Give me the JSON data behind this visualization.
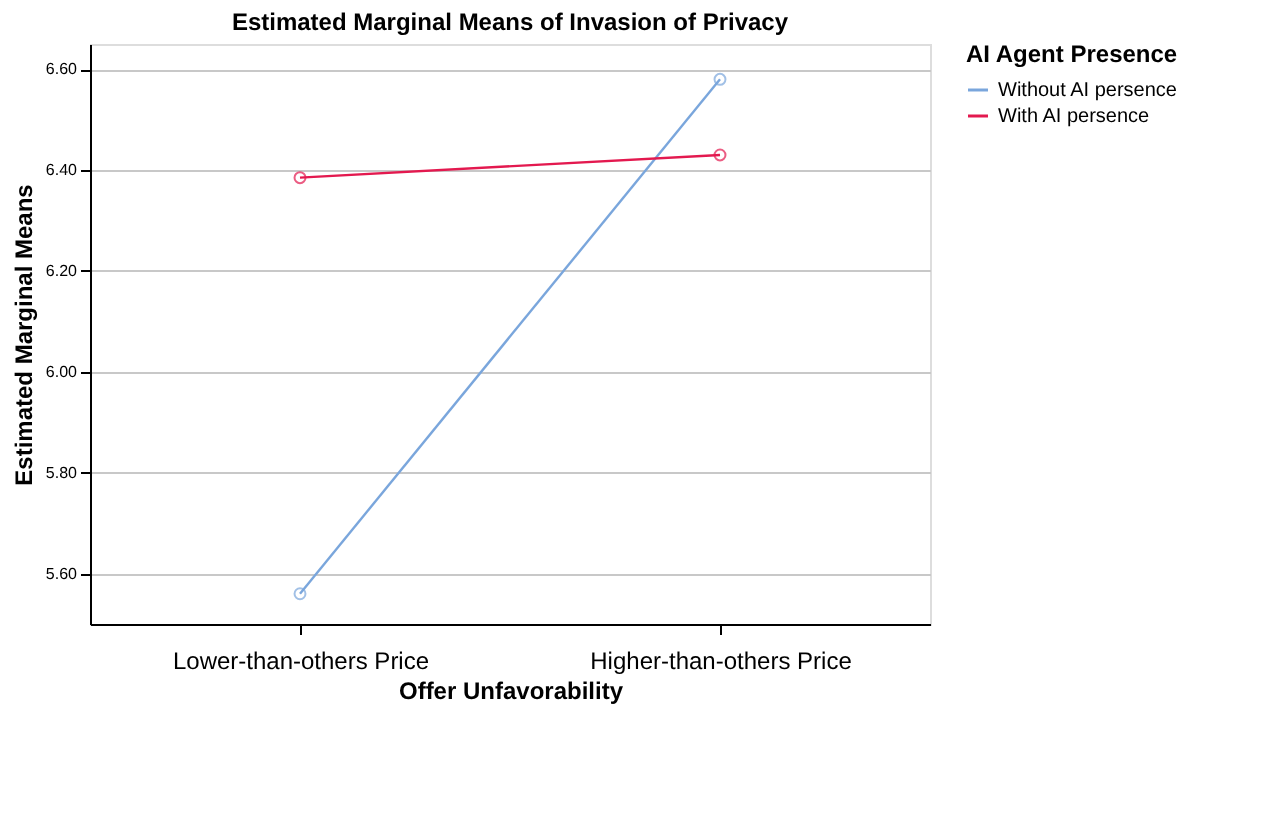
{
  "chart_data": {
    "type": "line",
    "title": "Estimated Marginal Means of Invasion of Privacy",
    "xlabel": "Offer Unfavorability",
    "ylabel": "Estimated Marginal Means",
    "legend_title": "AI Agent Presence",
    "categories": [
      "Lower-than-others Price",
      "Higher-than-others Price"
    ],
    "series": [
      {
        "name": "Without AI persence",
        "color": "#7aa6dc",
        "values": [
          5.56,
          6.58
        ]
      },
      {
        "name": "With AI persence",
        "color": "#e3194f",
        "values": [
          6.385,
          6.43
        ]
      }
    ],
    "ylim": [
      5.5,
      6.65
    ],
    "yticks": [
      {
        "value": 5.6,
        "label": "5.60"
      },
      {
        "value": 5.8,
        "label": "5.80"
      },
      {
        "value": 6.0,
        "label": "6.00"
      },
      {
        "value": 6.2,
        "label": "6.20"
      },
      {
        "value": 6.4,
        "label": "6.40"
      },
      {
        "value": 6.6,
        "label": "6.60"
      }
    ],
    "grid": "y",
    "legend": "top right",
    "marker": "circle",
    "line_style": "solid"
  }
}
